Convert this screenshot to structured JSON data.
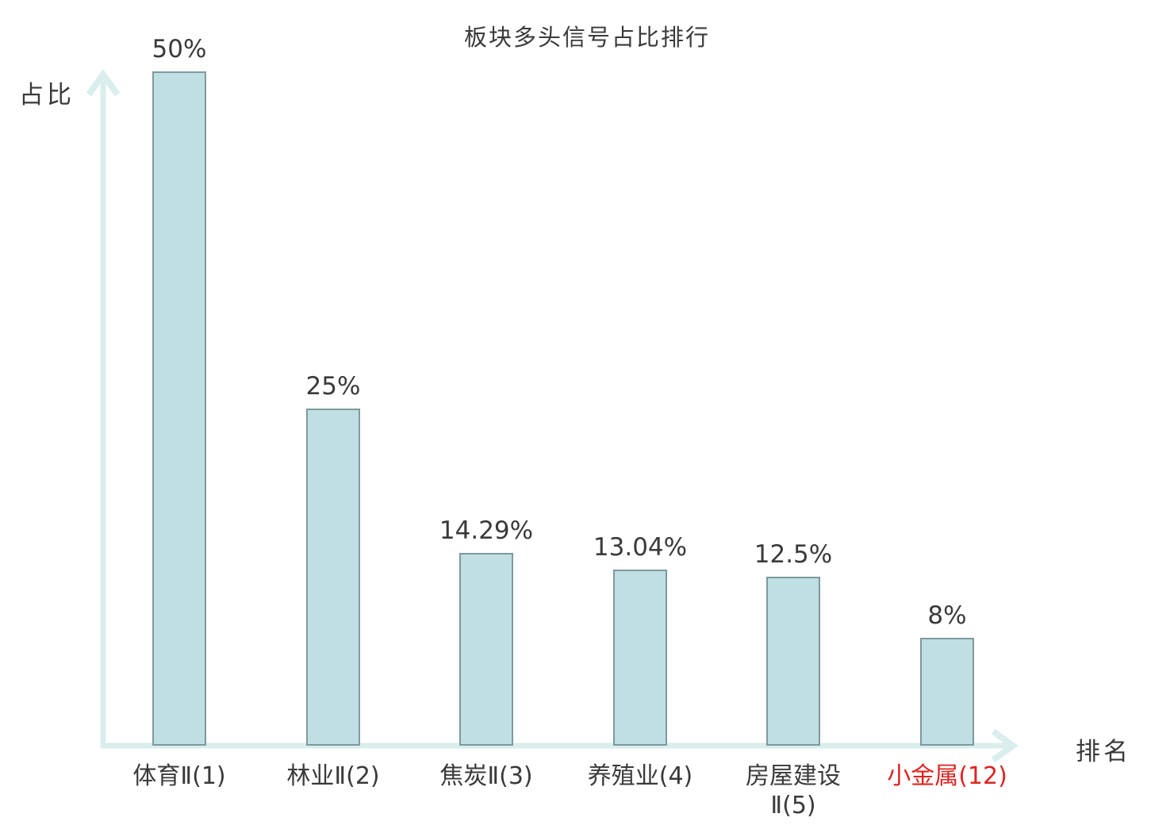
{
  "title": "板块多头信号占比排行",
  "axes": {
    "y_label": "占比",
    "x_label": "排名"
  },
  "chart_data": {
    "type": "bar",
    "title": "板块多头信号占比排行",
    "xlabel": "排名",
    "ylabel": "占比",
    "categories": [
      "体育Ⅱ(1)",
      "林业Ⅱ(2)",
      "焦炭Ⅱ(3)",
      "养殖业(4)",
      "房屋建设Ⅱ(5)",
      "小金属(12)"
    ],
    "category_lines": [
      [
        "体育Ⅱ(1)"
      ],
      [
        "林业Ⅱ(2)"
      ],
      [
        "焦炭Ⅱ(3)"
      ],
      [
        "养殖业(4)"
      ],
      [
        "房屋建设",
        "Ⅱ(5)"
      ],
      [
        "小金属(12)"
      ]
    ],
    "values": [
      50,
      25,
      14.29,
      13.04,
      12.5,
      8
    ],
    "value_labels": [
      "50%",
      "25%",
      "14.29%",
      "13.04%",
      "12.5%",
      "8%"
    ],
    "ylim": [
      0,
      50
    ],
    "grid": "off",
    "legend": "none",
    "highlight_index": 5,
    "colors": {
      "bar_fill": "#bfdfe3",
      "bar_border": "#7f999e",
      "axis": "#d9eeed",
      "text": "#3a3a3a",
      "highlight_text": "#dd2420"
    }
  }
}
